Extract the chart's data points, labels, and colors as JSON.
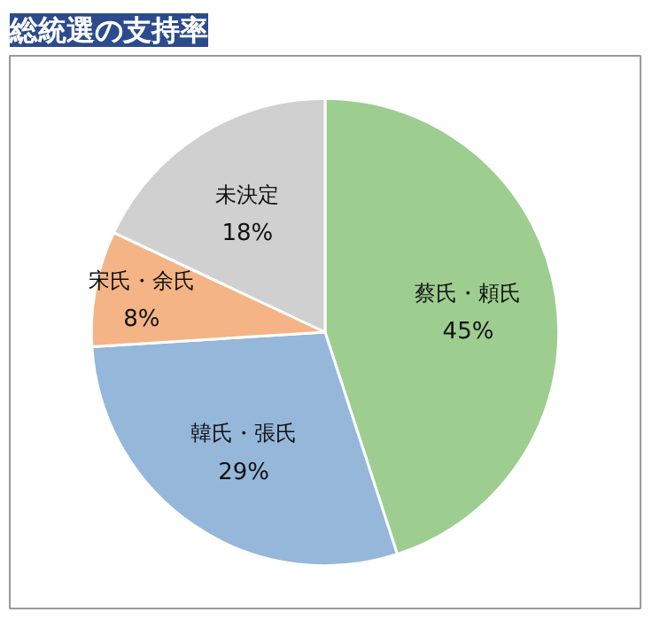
{
  "chart_data": {
    "type": "pie",
    "title": "総統選の支持率",
    "categories": [
      "蔡氏・頼氏",
      "韓氏・張氏",
      "宋氏・余氏",
      "未決定"
    ],
    "values": [
      45,
      29,
      8,
      18
    ],
    "value_labels": [
      "45%",
      "29%",
      "8%",
      "18%"
    ],
    "colors": [
      "#9dcd8f",
      "#95b7da",
      "#f4b486",
      "#d0d0d0"
    ]
  }
}
